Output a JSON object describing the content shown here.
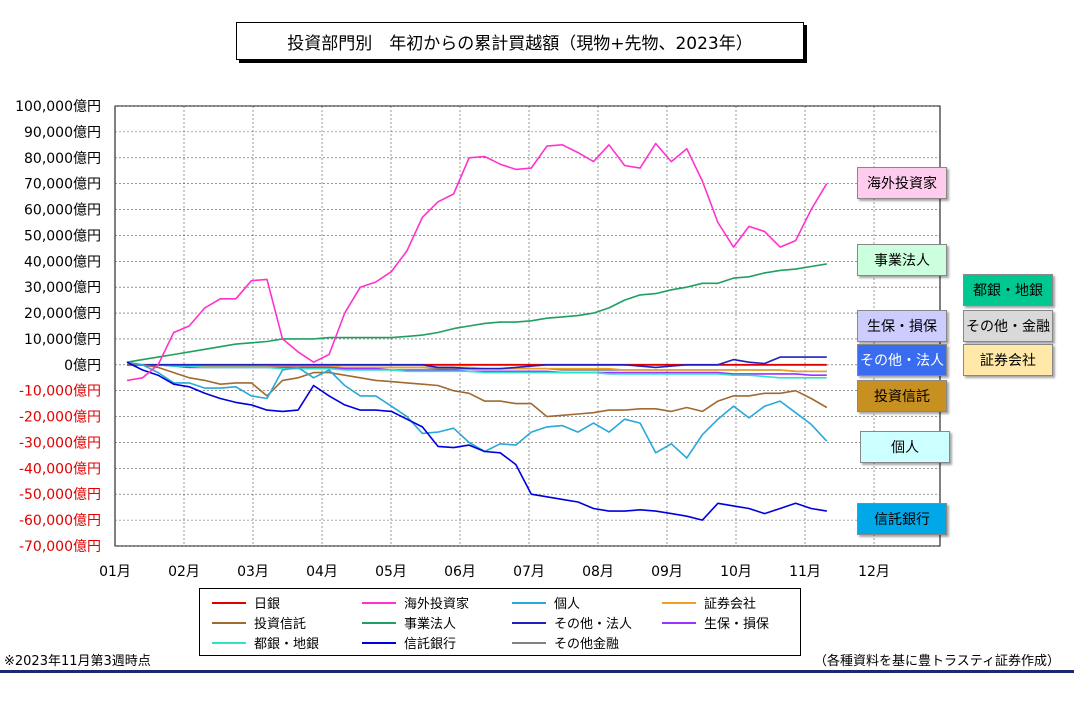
{
  "header": {
    "title": "投資部門別　年初からの累計買越額（現物+先物、2023年）"
  },
  "footnote": "※2023年11月第3週時点",
  "source": "（各種資料を基に豊トラスティ証券作成）",
  "callouts": {
    "foreign": "海外投資家",
    "corp": "事業法人",
    "city_bank": "都銀・地銀",
    "insurance": "生保・損保",
    "other_fin": "その他・金融",
    "other_corp": "その他・法人",
    "securities": "証券会社",
    "inv_trust": "投資信託",
    "individual": "個人",
    "trust_bank": "信託銀行"
  },
  "chart_data": {
    "type": "line",
    "title": "投資部門別　年初からの累計買越額（現物+先物、2023年）",
    "unit": "億円",
    "ylim": [
      -70000,
      100000
    ],
    "y_ticks": [
      "100,000億円",
      "90,000億円",
      "80,000億円",
      "70,000億円",
      "60,000億円",
      "50,000億円",
      "40,000億円",
      "30,000億円",
      "20,000億円",
      "10,000億円",
      "0億円",
      "-10,000億円",
      "-20,000億円",
      "-30,000億円",
      "-40,000億円",
      "-50,000億円",
      "-60,000億円",
      "-70,000億円"
    ],
    "x_ticks": [
      "01月",
      "02月",
      "03月",
      "04月",
      "05月",
      "06月",
      "07月",
      "08月",
      "09月",
      "10月",
      "11月",
      "12月"
    ],
    "grid": true,
    "legend_position": "bottom",
    "series": [
      {
        "name": "日銀",
        "color": "#e00000",
        "values": [
          0,
          0,
          0,
          0,
          0,
          0,
          0,
          0,
          0,
          0,
          0,
          0,
          0,
          0,
          0,
          0,
          0,
          0,
          0,
          0,
          0,
          0,
          0,
          0,
          0,
          0,
          0,
          0,
          0,
          0,
          0,
          0,
          0,
          0,
          0,
          0,
          0,
          0,
          0,
          0,
          0,
          0,
          0,
          0,
          0,
          0
        ]
      },
      {
        "name": "海外投資家",
        "color": "#ff33cc",
        "values": [
          -6000,
          -5000,
          0,
          12500,
          15000,
          22000,
          25500,
          25500,
          32500,
          33000,
          10000,
          5000,
          1000,
          4000,
          20000,
          30000,
          32000,
          36000,
          44000,
          57000,
          63000,
          66000,
          80000,
          80500,
          77500,
          75500,
          76000,
          84500,
          85000,
          82000,
          78500,
          85000,
          77000,
          76000,
          85500,
          78500,
          83500,
          71000,
          55000,
          45500,
          53500,
          51500,
          45500,
          48000,
          60000,
          70000
        ]
      },
      {
        "name": "個人",
        "color": "#29a9d9",
        "values": [
          1000,
          0,
          -3000,
          -7000,
          -7000,
          -9000,
          -9000,
          -8500,
          -12000,
          -13000,
          -2000,
          -1000,
          -5000,
          -2000,
          -8000,
          -12000,
          -12000,
          -16000,
          -20000,
          -26500,
          -26000,
          -24500,
          -30000,
          -33500,
          -30500,
          -31000,
          -26000,
          -24000,
          -23500,
          -26000,
          -22500,
          -26000,
          -21000,
          -22500,
          -34000,
          -30500,
          -36000,
          -27000,
          -21000,
          -16000,
          -20500,
          -16000,
          -14000,
          -18500,
          -23000,
          -29500
        ]
      },
      {
        "name": "証券会社",
        "color": "#f0a020",
        "values": [
          0,
          0,
          0,
          -500,
          -500,
          -500,
          -500,
          -500,
          -500,
          -500,
          -500,
          -500,
          -500,
          -500,
          -1000,
          -1000,
          -1000,
          -1000,
          -1000,
          -1000,
          -1000,
          -1000,
          -1000,
          -1500,
          -1500,
          -1500,
          -1500,
          -1500,
          -1500,
          -1500,
          -1500,
          -1500,
          -2000,
          -2000,
          -2000,
          -2000,
          -2000,
          -2000,
          -2000,
          -2000,
          -2000,
          -2000,
          -2000,
          -2500,
          -2500,
          -2500
        ]
      },
      {
        "name": "投資信託",
        "color": "#a06a30",
        "values": [
          0,
          0,
          -1000,
          -3000,
          -5000,
          -6000,
          -7500,
          -7000,
          -7000,
          -12000,
          -6000,
          -5000,
          -3000,
          -3000,
          -4000,
          -5000,
          -6000,
          -6500,
          -7000,
          -7500,
          -8000,
          -10000,
          -11000,
          -14000,
          -14000,
          -15000,
          -15000,
          -20000,
          -19500,
          -19000,
          -18500,
          -17500,
          -17500,
          -17000,
          -17000,
          -18000,
          -16500,
          -18000,
          -14000,
          -12000,
          -12000,
          -11000,
          -11000,
          -10000,
          -13000,
          -16500
        ]
      },
      {
        "name": "事業法人",
        "color": "#20a060",
        "values": [
          1000,
          2000,
          3000,
          4000,
          5000,
          6000,
          7000,
          8000,
          8500,
          9000,
          10000,
          10000,
          10000,
          10500,
          10500,
          10500,
          10500,
          10500,
          11000,
          11500,
          12500,
          14000,
          15000,
          16000,
          16500,
          16500,
          17000,
          18000,
          18500,
          19000,
          20000,
          22000,
          25000,
          27000,
          27500,
          29000,
          30000,
          31500,
          31500,
          33500,
          34000,
          35500,
          36500,
          37000,
          38000,
          39000
        ]
      },
      {
        "name": "その他・法人",
        "color": "#2020c0",
        "values": [
          0,
          0,
          0,
          0,
          0,
          0,
          0,
          0,
          0,
          0,
          0,
          0,
          0,
          0,
          0,
          0,
          0,
          0,
          0,
          0,
          -1000,
          -1000,
          -1500,
          -1500,
          -1500,
          -1000,
          -500,
          0,
          0,
          0,
          0,
          0,
          0,
          -500,
          -1000,
          -500,
          0,
          0,
          0,
          2000,
          1000,
          500,
          3000,
          3000,
          3000,
          3000
        ]
      },
      {
        "name": "生保・損保",
        "color": "#9933ff",
        "values": [
          0,
          0,
          0,
          -500,
          -1000,
          -1000,
          -1000,
          -1000,
          -1000,
          -1000,
          -1000,
          -1000,
          -1000,
          -1000,
          -1500,
          -1500,
          -1500,
          -2000,
          -2000,
          -2000,
          -2000,
          -2000,
          -2500,
          -2500,
          -2500,
          -2500,
          -2500,
          -2500,
          -3000,
          -3000,
          -3000,
          -3000,
          -3000,
          -3000,
          -3000,
          -3000,
          -3000,
          -3000,
          -3000,
          -3500,
          -3500,
          -3500,
          -3500,
          -3500,
          -4000,
          -4000
        ]
      },
      {
        "name": "都銀・地銀",
        "color": "#33e0c8",
        "values": [
          0,
          0,
          0,
          -500,
          -500,
          -1000,
          -1000,
          -1000,
          -1000,
          -1000,
          -1500,
          -1500,
          -1500,
          -1500,
          -2000,
          -2000,
          -2000,
          -2000,
          -2500,
          -2500,
          -2500,
          -2500,
          -2500,
          -3000,
          -3000,
          -3000,
          -3000,
          -3000,
          -3000,
          -3000,
          -3000,
          -3500,
          -3500,
          -3500,
          -3500,
          -3500,
          -3500,
          -3500,
          -3500,
          -4000,
          -4000,
          -4500,
          -5000,
          -5000,
          -5000,
          -5000
        ]
      },
      {
        "name": "信託銀行",
        "color": "#0000dd",
        "values": [
          1000,
          -2000,
          -4000,
          -7500,
          -8500,
          -11000,
          -13000,
          -14500,
          -15500,
          -17500,
          -18000,
          -17500,
          -8000,
          -12000,
          -15500,
          -17500,
          -17500,
          -18000,
          -21000,
          -24000,
          -31500,
          -32000,
          -31000,
          -33500,
          -34000,
          -38500,
          -50000,
          -51000,
          -52000,
          -53000,
          -55500,
          -56500,
          -56500,
          -56000,
          -56500,
          -57500,
          -58500,
          -60000,
          -53500,
          -54500,
          -55500,
          -57500,
          -55500,
          -53500,
          -55500,
          -56500
        ]
      },
      {
        "name": "その他金融",
        "color": "#808080",
        "values": [
          0,
          0,
          0,
          0,
          0,
          -500,
          -500,
          -500,
          -500,
          -500,
          -500,
          -500,
          -1000,
          -1000,
          -1000,
          -1000,
          -1000,
          -1000,
          -1000,
          -1000,
          -1500,
          -1500,
          -1500,
          -1500,
          -1500,
          -1500,
          -1500,
          -1500,
          -2000,
          -2000,
          -2000,
          -2000,
          -2000,
          -2000,
          -2000,
          -2000,
          -2000,
          -2000,
          -2000,
          -2000,
          -2000,
          -2000,
          -2000,
          -2500,
          -2500,
          -2500
        ]
      }
    ]
  }
}
